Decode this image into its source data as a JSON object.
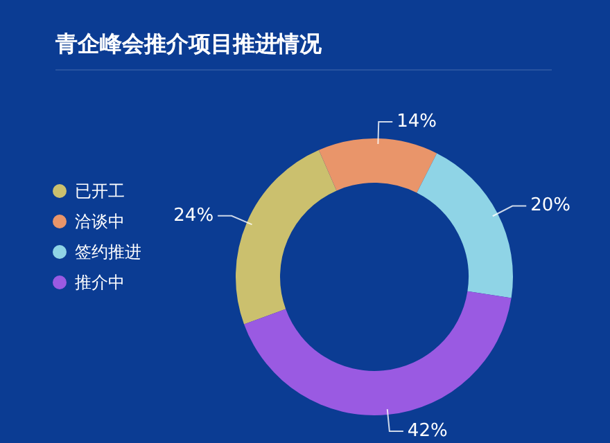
{
  "chart_data": {
    "type": "donut",
    "title": "青企峰会推介项目推进情况",
    "categories": [
      "已开工",
      "洽谈中",
      "签约推进",
      "推介中"
    ],
    "values": [
      24,
      14,
      20,
      42
    ],
    "colors": [
      "#cbc06e",
      "#e9956a",
      "#8fd4e6",
      "#9a5ae2"
    ],
    "value_labels": [
      "24%",
      "14%",
      "20%",
      "42%"
    ],
    "legend": "left"
  }
}
